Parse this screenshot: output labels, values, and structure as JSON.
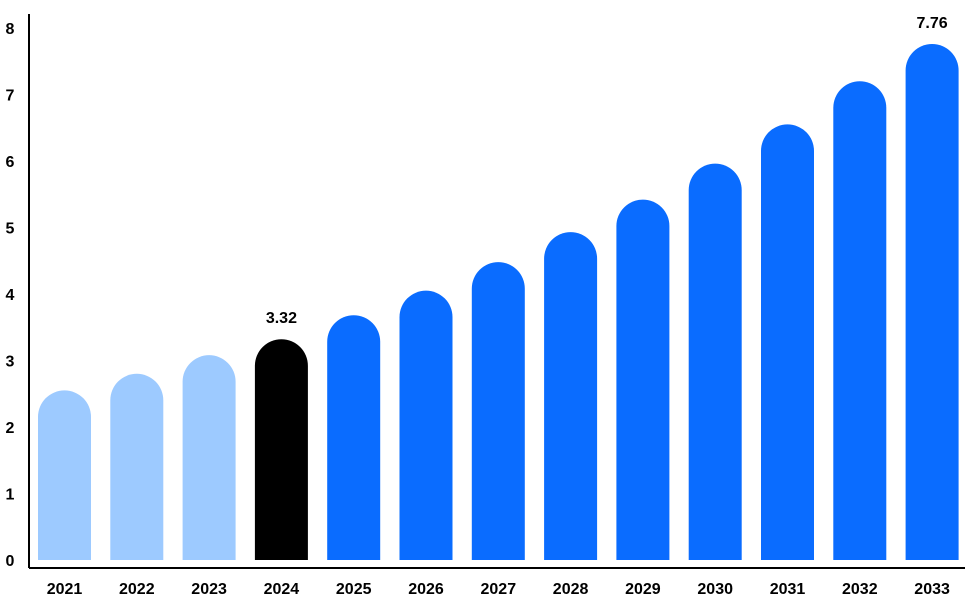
{
  "chart_data": {
    "type": "bar",
    "title": "",
    "xlabel": "",
    "ylabel": "",
    "categories": [
      "2021",
      "2022",
      "2023",
      "2024",
      "2025",
      "2026",
      "2027",
      "2028",
      "2029",
      "2030",
      "2031",
      "2032",
      "2033"
    ],
    "values": [
      2.55,
      2.8,
      3.08,
      3.32,
      3.68,
      4.05,
      4.48,
      4.93,
      5.42,
      5.96,
      6.55,
      7.2,
      7.76
    ],
    "data_labels": {
      "2024": "3.32",
      "2033": "7.76"
    },
    "bar_colors": [
      "#9dcaff",
      "#9dcaff",
      "#9dcaff",
      "#000000",
      "#0a6cff",
      "#0a6cff",
      "#0a6cff",
      "#0a6cff",
      "#0a6cff",
      "#0a6cff",
      "#0a6cff",
      "#0a6cff",
      "#0a6cff"
    ],
    "ylim": [
      0,
      8
    ],
    "yticks": [
      "0",
      "1",
      "2",
      "3",
      "4",
      "5",
      "6",
      "7",
      "8"
    ],
    "grid": false,
    "legend": "none"
  }
}
